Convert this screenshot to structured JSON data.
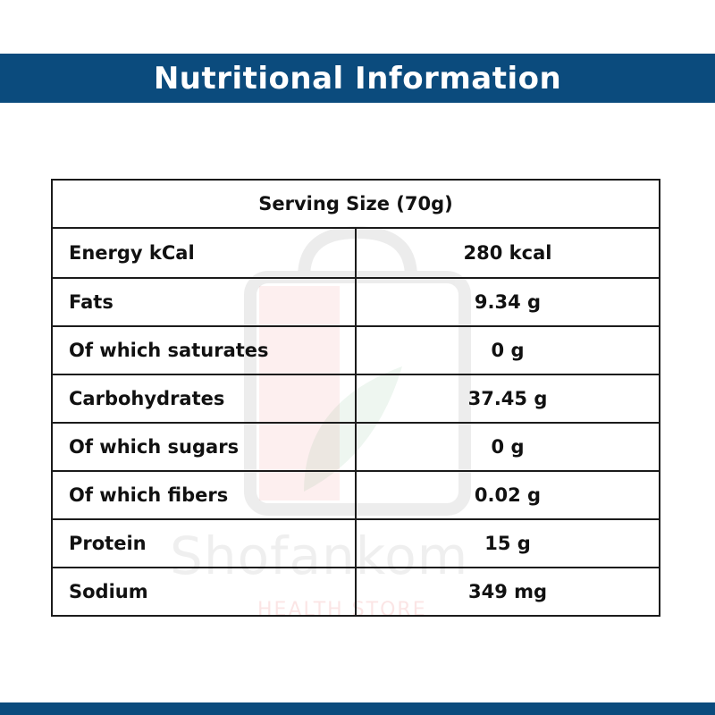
{
  "header": {
    "title": "Nutritional Information"
  },
  "serving_size": "Serving Size (70g)",
  "watermark": {
    "brand": "Shofankom",
    "tagline": "HEALTH STORE"
  },
  "rows": [
    {
      "label": "Energy kCal",
      "value": "280 kcal"
    },
    {
      "label": "Fats",
      "value": "9.34 g"
    },
    {
      "label": "Of which saturates",
      "value": "0 g"
    },
    {
      "label": "Carbohydrates",
      "value": "37.45 g"
    },
    {
      "label": "Of which sugars",
      "value": "0 g"
    },
    {
      "label": "Of which fibers",
      "value": "0.02 g"
    },
    {
      "label": "Protein",
      "value": "15 g"
    },
    {
      "label": "Sodium",
      "value": "349 mg"
    }
  ],
  "colors": {
    "banner": "#0b4b7d",
    "serving_text": "#e0161b",
    "border": "#1b1b1b"
  }
}
